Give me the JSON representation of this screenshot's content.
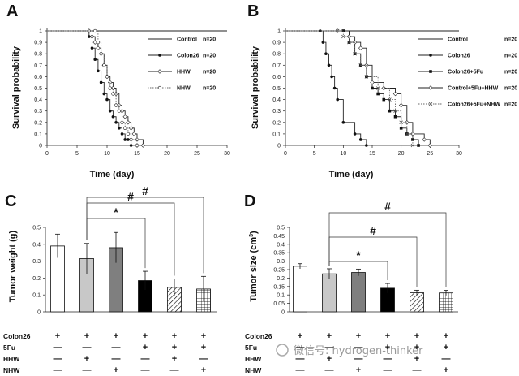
{
  "chart_data": [
    {
      "panel": "A",
      "type": "line",
      "xlabel": "Time (day)",
      "ylabel": "Survival probability",
      "xlim": [
        0,
        30
      ],
      "ylim": [
        0,
        1
      ],
      "xticks": [
        "0",
        "5",
        "10",
        "15",
        "20",
        "25",
        "30"
      ],
      "yticks": [
        "0",
        "0.1",
        "0.2",
        "0.3",
        "0.4",
        "0.5",
        "0.6",
        "0.7",
        "0.8",
        "0.9",
        "1"
      ],
      "legend_position": "right",
      "series": [
        {
          "name": "Control",
          "n": "n=20",
          "marker": "none",
          "style": "solid",
          "x": [
            0,
            30
          ],
          "y": [
            1,
            1
          ]
        },
        {
          "name": "Colon26",
          "n": "n=20",
          "marker": "filled-circle",
          "style": "solid",
          "x": [
            0,
            7,
            7,
            7.5,
            8,
            8.5,
            9,
            9.5,
            10,
            10.5,
            11,
            11.5,
            12,
            12.5,
            13,
            13.5,
            14
          ],
          "y": [
            1,
            1,
            0.95,
            0.85,
            0.75,
            0.65,
            0.55,
            0.45,
            0.4,
            0.3,
            0.25,
            0.2,
            0.15,
            0.1,
            0.05,
            0.05,
            0
          ]
        },
        {
          "name": "HHW",
          "n": "n=20",
          "marker": "open-diamond",
          "style": "solid",
          "x": [
            0,
            7,
            7.5,
            8,
            8.5,
            9,
            9.5,
            10,
            10.5,
            11,
            11.5,
            12,
            12.5,
            13,
            13.5,
            14,
            14.5,
            15,
            16
          ],
          "y": [
            1,
            1,
            0.95,
            0.9,
            0.85,
            0.8,
            0.7,
            0.6,
            0.55,
            0.5,
            0.45,
            0.35,
            0.3,
            0.25,
            0.2,
            0.15,
            0.1,
            0.05,
            0
          ]
        },
        {
          "name": "NHW",
          "n": "n=20",
          "marker": "open-circle",
          "style": "dotted",
          "x": [
            0,
            8,
            8.5,
            9,
            9.5,
            10,
            10.5,
            11,
            11.5,
            12,
            12.5,
            13,
            13.5,
            14,
            15
          ],
          "y": [
            1,
            1,
            0.9,
            0.8,
            0.7,
            0.6,
            0.5,
            0.45,
            0.35,
            0.3,
            0.2,
            0.15,
            0.1,
            0.05,
            0
          ]
        }
      ]
    },
    {
      "panel": "B",
      "type": "line",
      "xlabel": "Time (day)",
      "ylabel": "Survival probability",
      "xlim": [
        0,
        30
      ],
      "ylim": [
        0,
        1
      ],
      "xticks": [
        "0",
        "5",
        "10",
        "15",
        "20",
        "25",
        "30"
      ],
      "yticks": [
        "0",
        "0.1",
        "0.2",
        "0.3",
        "0.4",
        "0.5",
        "0.6",
        "0.7",
        "0.8",
        "0.9",
        "1"
      ],
      "legend_position": "right",
      "series": [
        {
          "name": "Control",
          "n": "n=20",
          "marker": "none",
          "style": "solid",
          "x": [
            0,
            30
          ],
          "y": [
            1,
            1
          ]
        },
        {
          "name": "Colon26",
          "n": "n=20",
          "marker": "filled-circle",
          "style": "solid",
          "x": [
            0,
            6,
            6.5,
            7,
            7.5,
            8,
            8.5,
            9,
            10,
            12,
            13,
            14
          ],
          "y": [
            1,
            1,
            0.9,
            0.8,
            0.7,
            0.6,
            0.5,
            0.4,
            0.2,
            0.1,
            0.05,
            0
          ]
        },
        {
          "name": "Colon26+5Fu",
          "n": "n=20",
          "marker": "filled-square",
          "style": "solid",
          "x": [
            0,
            10,
            11,
            12,
            13,
            14,
            15,
            16,
            17,
            18,
            19,
            20,
            21,
            22,
            23
          ],
          "y": [
            1,
            1,
            0.9,
            0.8,
            0.7,
            0.6,
            0.5,
            0.45,
            0.4,
            0.3,
            0.25,
            0.15,
            0.1,
            0.05,
            0
          ]
        },
        {
          "name": "Control+5Fu+HHW",
          "n": "n=20",
          "marker": "open-diamond",
          "style": "solid",
          "x": [
            0,
            9,
            11,
            12,
            13,
            14,
            15,
            17,
            19,
            20,
            21,
            22,
            24,
            25
          ],
          "y": [
            1,
            1,
            0.95,
            0.9,
            0.85,
            0.7,
            0.55,
            0.5,
            0.45,
            0.35,
            0.2,
            0.1,
            0.05,
            0
          ]
        },
        {
          "name": "Colon26+5Fu+NHW",
          "n": "n=20",
          "marker": "x",
          "style": "dotted",
          "x": [
            0,
            9,
            10,
            11,
            12,
            13,
            14,
            16,
            18,
            19,
            20,
            21,
            22
          ],
          "y": [
            1,
            1,
            0.95,
            0.9,
            0.8,
            0.7,
            0.6,
            0.5,
            0.4,
            0.3,
            0.2,
            0.1,
            0
          ]
        }
      ]
    },
    {
      "panel": "C",
      "type": "bar",
      "ylabel": "Tumor weight (g)",
      "ylim": [
        0,
        0.5
      ],
      "yticks": [
        "0",
        "0.1",
        "0.2",
        "0.3",
        "0.4",
        "0.5"
      ],
      "values": [
        0.39,
        0.315,
        0.38,
        0.185,
        0.145,
        0.135
      ],
      "errors": [
        0.07,
        0.09,
        0.09,
        0.055,
        0.05,
        0.075
      ],
      "fills": [
        "#ffffff",
        "#c8c8c8",
        "#7f7f7f",
        "#000000",
        "hatch",
        "grid"
      ],
      "annotations": [
        {
          "from": 1,
          "to": 3,
          "label": "*"
        },
        {
          "from": 1,
          "to": 4,
          "label": "#"
        },
        {
          "from": 1,
          "to": 5,
          "label": "#"
        }
      ]
    },
    {
      "panel": "D",
      "type": "bar",
      "ylabel": "Tumor size (cm",
      "ylabel_sup": "3",
      "ylabel_end": ")",
      "ylim": [
        0,
        0.5
      ],
      "yticks": [
        "0",
        "0.05",
        "0.1",
        "0.15",
        "0.2",
        "0.25",
        "0.3",
        "0.35",
        "0.4",
        "0.45",
        "0.5"
      ],
      "values": [
        0.27,
        0.225,
        0.233,
        0.14,
        0.113,
        0.112
      ],
      "errors": [
        0.015,
        0.03,
        0.02,
        0.028,
        0.015,
        0.015
      ],
      "fills": [
        "#ffffff",
        "#c8c8c8",
        "#7f7f7f",
        "#000000",
        "hatch",
        "grid"
      ],
      "annotations": [
        {
          "from": 1,
          "to": 3,
          "label": "*"
        },
        {
          "from": 1,
          "to": 4,
          "label": "#"
        },
        {
          "from": 1,
          "to": 5,
          "label": "#"
        }
      ]
    }
  ],
  "panel_labels": {
    "a": "A",
    "b": "B",
    "c": "C",
    "d": "D"
  },
  "groups": {
    "rows": [
      "Colon26",
      "5Fu",
      "HHW",
      "NHW"
    ],
    "marks": [
      [
        "+",
        "+",
        "+",
        "+",
        "+",
        "+"
      ],
      [
        "—",
        "—",
        "—",
        "+",
        "+",
        "+"
      ],
      [
        "—",
        "+",
        "—",
        "—",
        "+",
        "—"
      ],
      [
        "—",
        "—",
        "+",
        "—",
        "—",
        "+"
      ]
    ]
  },
  "watermark": "微信号: hydrogen-thinker"
}
